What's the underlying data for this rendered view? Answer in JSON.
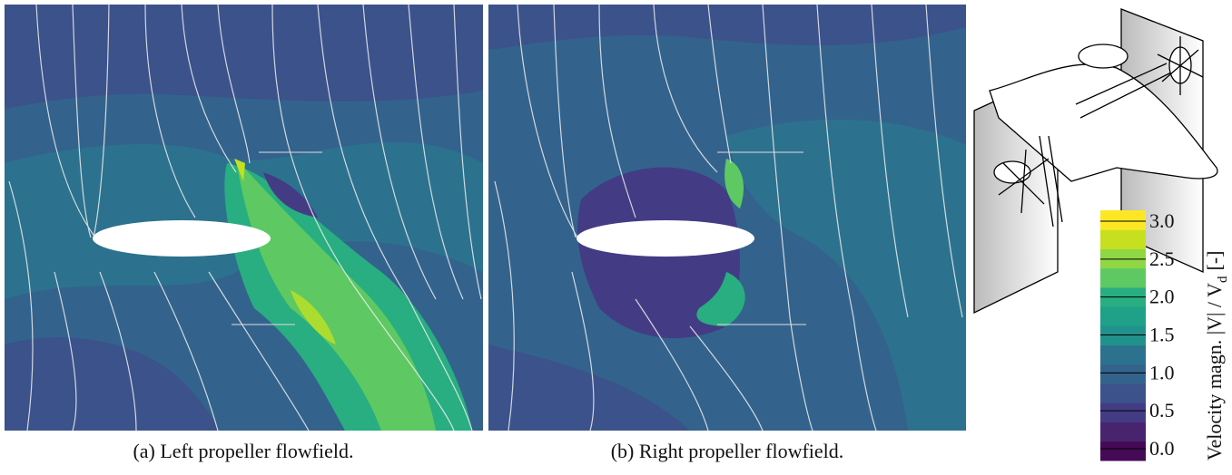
{
  "panels": [
    {
      "caption": "(a) Left propeller flowfield."
    },
    {
      "caption": "(b) Right propeller flowfield."
    }
  ],
  "colorbar": {
    "label": "Velocity magn. |V| / V",
    "label_subscript": "d",
    "label_unit": "[-]",
    "ticks": [
      {
        "value": 0,
        "label": "0.0"
      },
      {
        "value": 0.5,
        "label": "0.5"
      },
      {
        "value": 1,
        "label": "1.0"
      },
      {
        "value": 1.5,
        "label": "1.5"
      },
      {
        "value": 2,
        "label": "2.0"
      },
      {
        "value": 2.5,
        "label": "2.5"
      },
      {
        "value": 3,
        "label": "3.0"
      }
    ],
    "colors": [
      "#450a55",
      "#48246f",
      "#433c84",
      "#3b528b",
      "#33638d",
      "#2c728e",
      "#21918c",
      "#1fa088",
      "#28ae80",
      "#5ec962",
      "#8fd744",
      "#c6e01f",
      "#fde725"
    ]
  }
}
